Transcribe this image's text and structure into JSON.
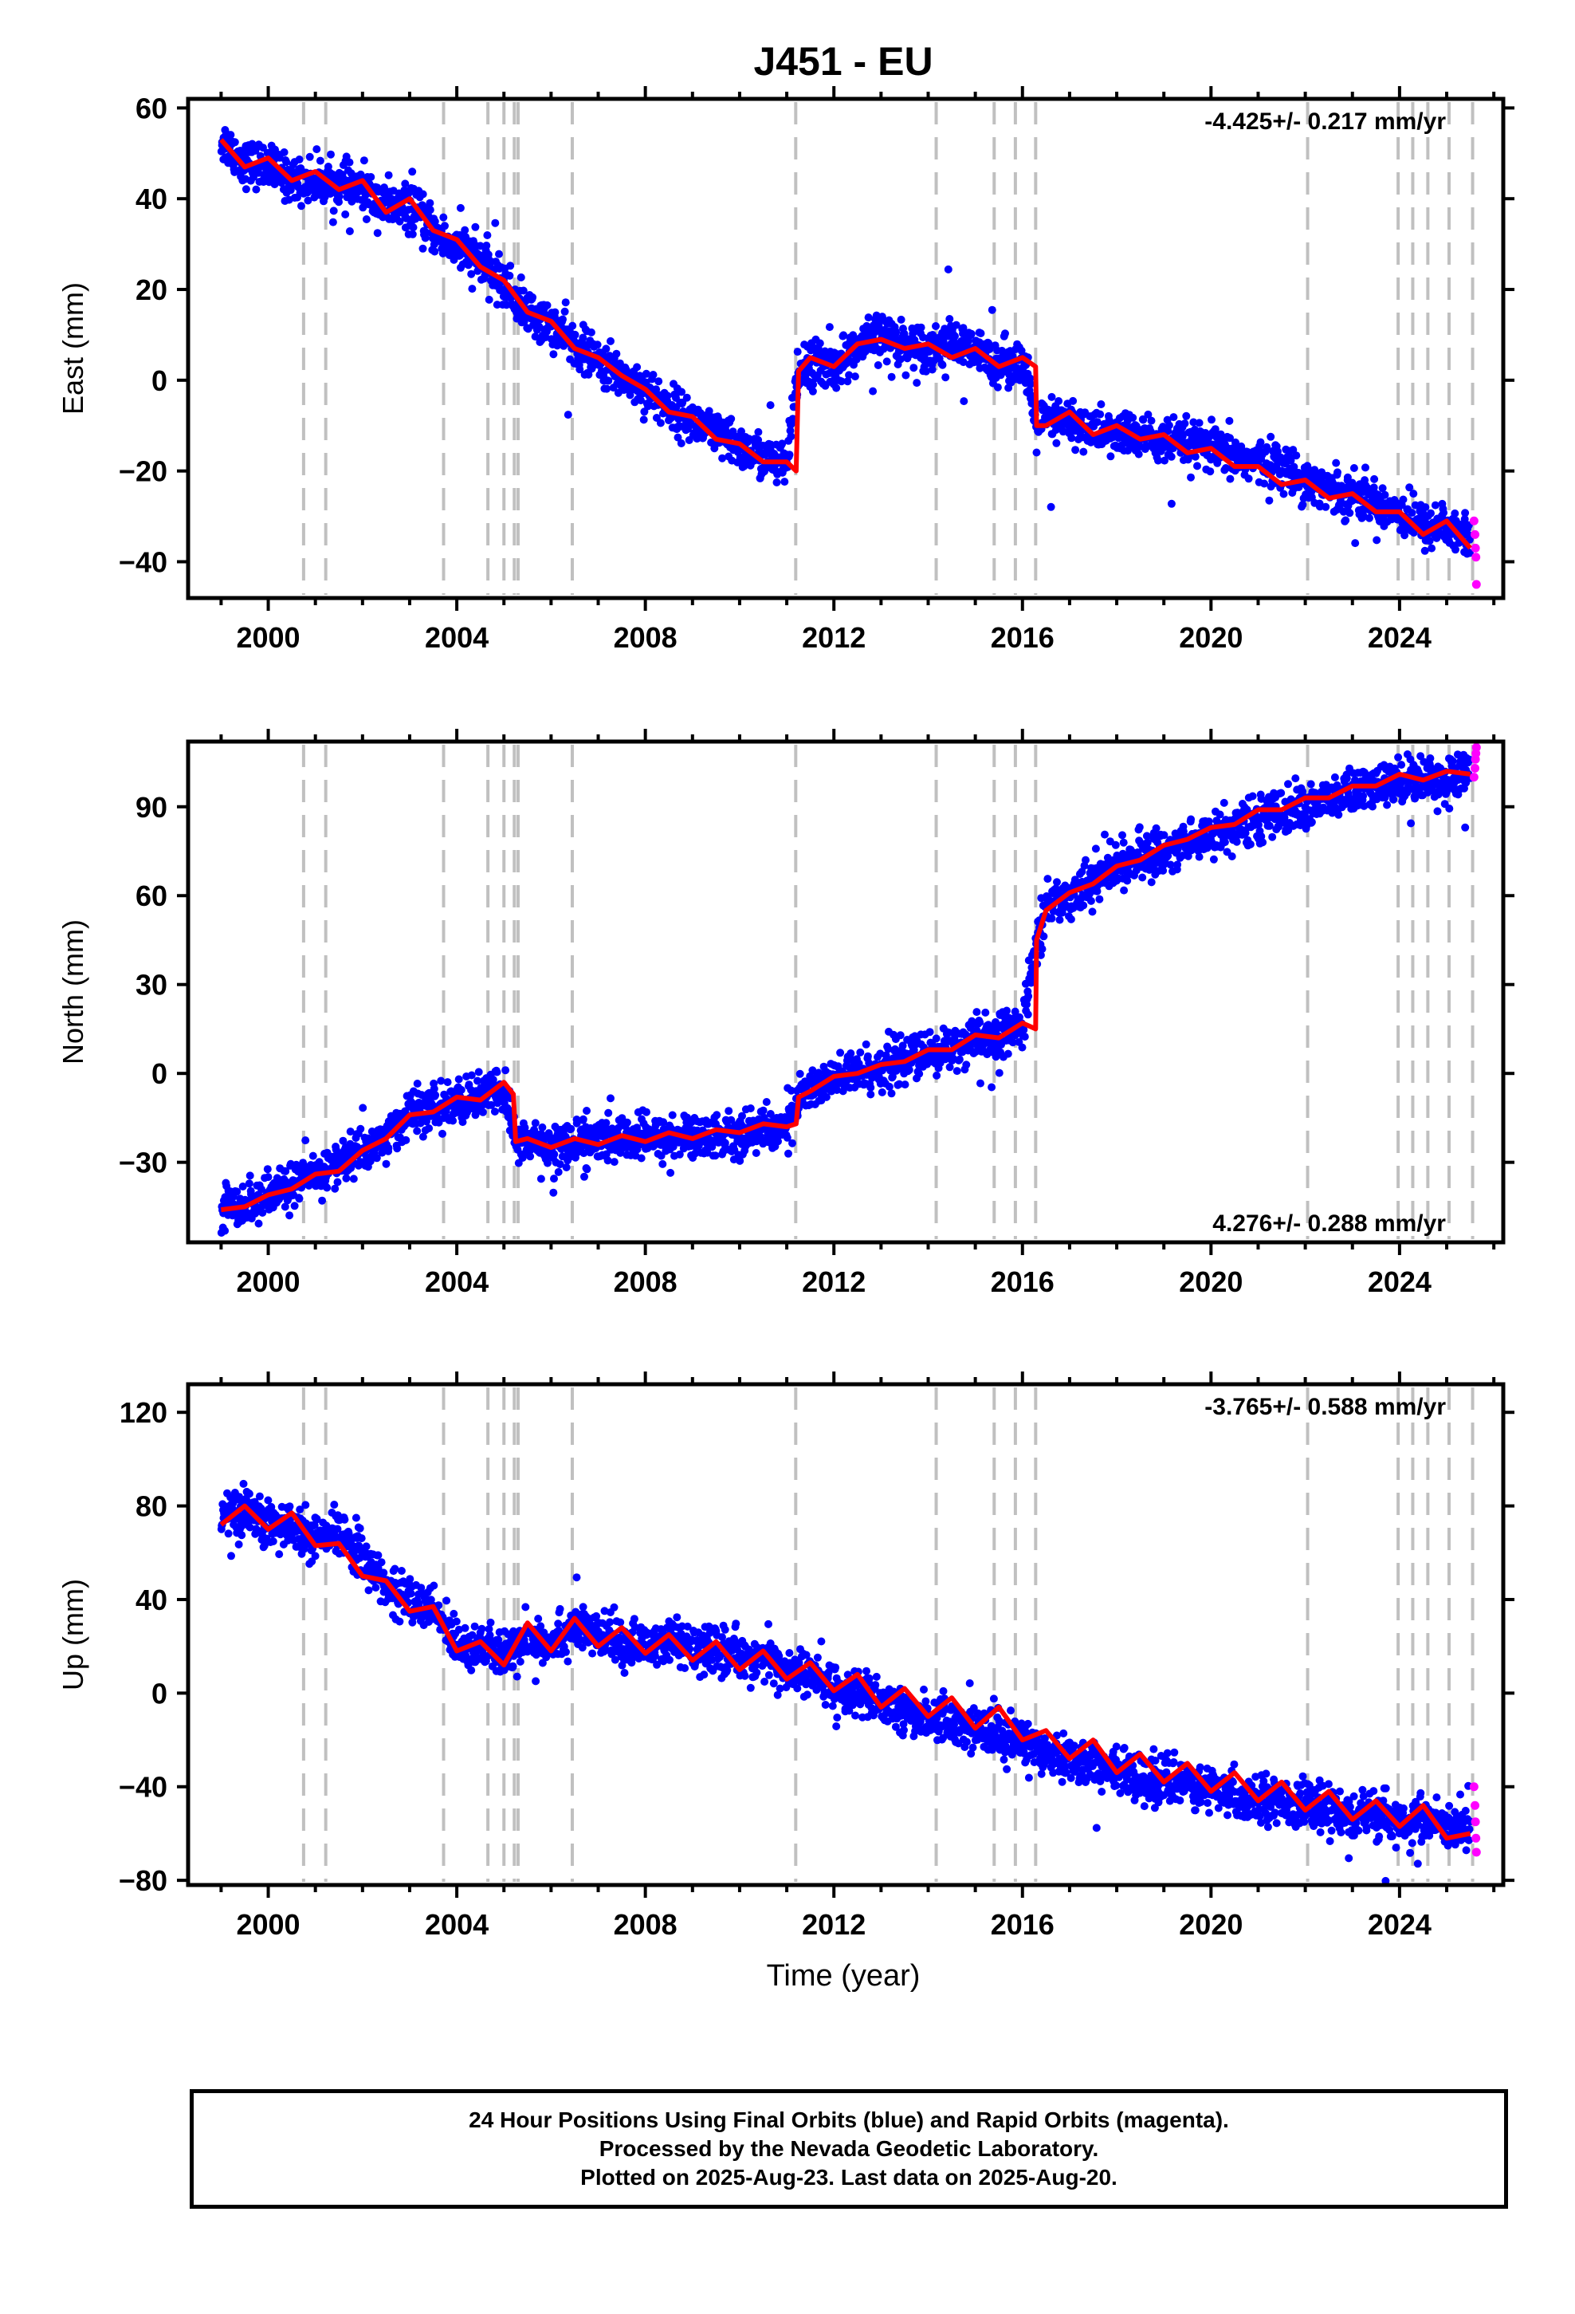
{
  "title": "J451 - EU",
  "xlabel": "Time (year)",
  "caption": [
    "24 Hour Positions Using Final Orbits (blue) and Rapid Orbits (magenta).",
    "Processed by the Nevada Geodetic Laboratory.",
    "Plotted on 2025-Aug-23. Last data on 2025-Aug-20."
  ],
  "colors": {
    "final": "#0000ff",
    "rapid": "#ff00ff",
    "model": "#ff0000",
    "steps": "#c0c0c0"
  },
  "chart_data": [
    {
      "type": "scatter",
      "ylabel": "East (mm)",
      "rate_label": "-4.425+/- 0.217 mm/yr",
      "rate_position": "top-right",
      "xlim": [
        1998.3,
        2026.2
      ],
      "ylim": [
        -48,
        62
      ],
      "yticks": [
        -40,
        -20,
        0,
        20,
        40,
        60
      ],
      "xticks": [
        2000,
        2004,
        2008,
        2012,
        2016,
        2020,
        2024
      ],
      "step_epochs": [
        2000.75,
        2001.22,
        2003.72,
        2004.66,
        2005.0,
        2005.22,
        2005.3,
        2006.45,
        2011.19,
        2014.17,
        2015.4,
        2015.85,
        2016.28,
        2022.05,
        2023.97,
        2024.28,
        2024.6,
        2025.05,
        2025.55
      ],
      "series": [
        {
          "name": "Final Orbits",
          "color": "#0000ff",
          "x": [
            1999.0,
            1999.5,
            2000.0,
            2000.5,
            2001.0,
            2001.5,
            2002.0,
            2002.5,
            2003.0,
            2003.5,
            2004.0,
            2004.5,
            2005.0,
            2005.5,
            2006.0,
            2006.5,
            2007.0,
            2007.5,
            2008.0,
            2008.5,
            2009.0,
            2009.5,
            2010.0,
            2010.5,
            2011.0,
            2011.25,
            2011.5,
            2012.0,
            2012.5,
            2013.0,
            2013.5,
            2014.0,
            2014.5,
            2015.0,
            2015.5,
            2016.0,
            2016.3,
            2016.5,
            2017.0,
            2017.5,
            2018.0,
            2018.5,
            2019.0,
            2019.5,
            2020.0,
            2020.5,
            2021.0,
            2021.5,
            2022.0,
            2022.5,
            2023.0,
            2023.5,
            2024.0,
            2024.5,
            2025.0,
            2025.5
          ],
          "y": [
            53,
            48,
            47,
            44,
            44,
            43,
            42,
            38,
            38,
            33,
            29,
            26,
            21,
            15,
            12,
            8,
            4,
            1,
            -2,
            -6,
            -9,
            -12,
            -15,
            -17,
            -19,
            2,
            4,
            3,
            7,
            10,
            8,
            7,
            8,
            6,
            4,
            4,
            -10,
            -9,
            -9,
            -11,
            -12,
            -12,
            -14,
            -14,
            -15,
            -17,
            -18,
            -19,
            -22,
            -24,
            -25,
            -27,
            -29,
            -32,
            -32,
            -35
          ]
        },
        {
          "name": "Rapid Orbits",
          "color": "#ff00ff",
          "x": [
            2025.58,
            2025.6,
            2025.61,
            2025.62,
            2025.63
          ],
          "y": [
            -31,
            -34,
            -37,
            -39,
            -45
          ]
        }
      ],
      "model": {
        "x": [
          1999.0,
          1999.5,
          2000.0,
          2000.5,
          2001.0,
          2001.5,
          2002.0,
          2002.5,
          2003.0,
          2003.5,
          2004.0,
          2004.5,
          2005.0,
          2005.5,
          2006.0,
          2006.5,
          2007.0,
          2007.5,
          2008.0,
          2008.5,
          2009.0,
          2009.5,
          2010.0,
          2010.5,
          2011.0,
          2011.2,
          2011.25,
          2011.5,
          2012.0,
          2012.5,
          2013.0,
          2013.5,
          2014.0,
          2014.5,
          2015.0,
          2015.5,
          2016.0,
          2016.28,
          2016.3,
          2016.5,
          2017.0,
          2017.5,
          2018.0,
          2018.5,
          2019.0,
          2019.5,
          2020.0,
          2020.5,
          2021.0,
          2021.5,
          2022.0,
          2022.5,
          2023.0,
          2023.5,
          2024.0,
          2024.5,
          2025.0,
          2025.5
        ],
        "y": [
          53,
          47,
          49,
          44,
          46,
          42,
          44,
          37,
          40,
          33,
          31,
          25,
          22,
          15,
          13,
          7,
          5,
          1,
          -2,
          -7,
          -8,
          -13,
          -14,
          -18,
          -18,
          -20,
          2,
          5,
          3,
          8,
          9,
          7,
          8,
          5,
          7,
          3,
          5,
          3,
          -10,
          -10,
          -7,
          -12,
          -10,
          -13,
          -12,
          -16,
          -15,
          -19,
          -19,
          -23,
          -22,
          -26,
          -25,
          -29,
          -29,
          -34,
          -31,
          -37
        ]
      }
    },
    {
      "type": "scatter",
      "ylabel": "North (mm)",
      "rate_label": "4.276+/- 0.288 mm/yr",
      "rate_position": "bottom-right",
      "xlim": [
        1998.3,
        2026.2
      ],
      "ylim": [
        -57,
        112
      ],
      "yticks": [
        -30,
        0,
        30,
        60,
        90
      ],
      "xticks": [
        2000,
        2004,
        2008,
        2012,
        2016,
        2020,
        2024
      ],
      "step_epochs": [
        2000.75,
        2001.22,
        2003.72,
        2004.66,
        2005.0,
        2005.22,
        2005.3,
        2006.45,
        2011.19,
        2014.17,
        2015.4,
        2015.85,
        2016.28,
        2022.05,
        2023.97,
        2024.28,
        2024.6,
        2025.05,
        2025.55
      ],
      "series": [
        {
          "name": "Final Orbits",
          "color": "#0000ff",
          "x": [
            1999.0,
            1999.5,
            2000.0,
            2000.5,
            2001.0,
            2001.5,
            2002.0,
            2002.5,
            2003.0,
            2003.5,
            2004.0,
            2004.5,
            2005.0,
            2005.25,
            2005.5,
            2006.0,
            2006.5,
            2007.0,
            2007.5,
            2008.0,
            2008.5,
            2009.0,
            2009.5,
            2010.0,
            2010.5,
            2011.0,
            2011.25,
            2011.5,
            2012.0,
            2012.5,
            2013.0,
            2013.5,
            2014.0,
            2014.5,
            2015.0,
            2015.5,
            2016.0,
            2016.3,
            2016.5,
            2017.0,
            2017.5,
            2018.0,
            2018.5,
            2019.0,
            2019.5,
            2020.0,
            2020.5,
            2021.0,
            2021.5,
            2022.0,
            2022.5,
            2023.0,
            2023.5,
            2024.0,
            2024.5,
            2025.0,
            2025.5
          ],
          "y": [
            -45,
            -44,
            -42,
            -37,
            -35,
            -30,
            -26,
            -22,
            -13,
            -12,
            -10,
            -8,
            -5,
            -23,
            -23,
            -24,
            -24,
            -23,
            -22,
            -22,
            -22,
            -21,
            -21,
            -20,
            -19,
            -18,
            -8,
            -5,
            -2,
            0,
            2,
            5,
            6,
            9,
            11,
            13,
            15,
            45,
            56,
            60,
            65,
            70,
            73,
            75,
            78,
            81,
            83,
            86,
            88,
            90,
            92,
            95,
            96,
            99,
            100,
            99,
            101
          ]
        },
        {
          "name": "Rapid Orbits",
          "color": "#ff00ff",
          "x": [
            2025.58,
            2025.6,
            2025.61,
            2025.62,
            2025.63
          ],
          "y": [
            100,
            103,
            106,
            108,
            110
          ]
        }
      ],
      "model": {
        "x": [
          1999.0,
          1999.5,
          2000.0,
          2000.5,
          2001.0,
          2001.5,
          2002.0,
          2002.5,
          2003.0,
          2003.5,
          2004.0,
          2004.5,
          2005.0,
          2005.2,
          2005.25,
          2005.5,
          2006.0,
          2006.5,
          2007.0,
          2007.5,
          2008.0,
          2008.5,
          2009.0,
          2009.5,
          2010.0,
          2010.5,
          2011.0,
          2011.2,
          2011.25,
          2011.5,
          2012.0,
          2012.5,
          2013.0,
          2013.5,
          2014.0,
          2014.5,
          2015.0,
          2015.5,
          2016.0,
          2016.28,
          2016.3,
          2016.5,
          2017.0,
          2017.5,
          2018.0,
          2018.5,
          2019.0,
          2019.5,
          2020.0,
          2020.5,
          2021.0,
          2021.5,
          2022.0,
          2022.5,
          2023.0,
          2023.5,
          2024.0,
          2024.5,
          2025.0,
          2025.5
        ],
        "y": [
          -46,
          -45,
          -41,
          -39,
          -34,
          -33,
          -26,
          -22,
          -14,
          -13,
          -8,
          -9,
          -3,
          -7,
          -23,
          -22,
          -25,
          -22,
          -24,
          -21,
          -23,
          -20,
          -22,
          -19,
          -20,
          -17,
          -18,
          -17,
          -8,
          -6,
          -1,
          0,
          3,
          4,
          8,
          8,
          13,
          12,
          17,
          15,
          45,
          55,
          61,
          64,
          70,
          72,
          77,
          79,
          83,
          84,
          89,
          89,
          93,
          93,
          97,
          97,
          101,
          99,
          102,
          101
        ]
      }
    },
    {
      "type": "scatter",
      "ylabel": "Up (mm)",
      "rate_label": "-3.765+/- 0.588 mm/yr",
      "rate_position": "top-right",
      "xlim": [
        1998.3,
        2026.2
      ],
      "ylim": [
        -82,
        132
      ],
      "yticks": [
        -80,
        -40,
        0,
        40,
        80,
        120
      ],
      "xticks": [
        2000,
        2004,
        2008,
        2012,
        2016,
        2020,
        2024
      ],
      "step_epochs": [
        2000.75,
        2001.22,
        2003.72,
        2004.66,
        2005.0,
        2005.22,
        2005.3,
        2006.45,
        2011.19,
        2014.17,
        2015.4,
        2015.85,
        2016.28,
        2022.05,
        2023.97,
        2024.28,
        2024.6,
        2025.05,
        2025.55
      ],
      "series": [
        {
          "name": "Final Orbits",
          "color": "#0000ff",
          "x": [
            1999.0,
            1999.5,
            2000.0,
            2000.5,
            2001.0,
            2001.5,
            2002.0,
            2002.5,
            2003.0,
            2003.5,
            2004.0,
            2004.5,
            2005.0,
            2005.5,
            2006.0,
            2006.5,
            2007.0,
            2007.5,
            2008.0,
            2008.5,
            2009.0,
            2009.5,
            2010.0,
            2010.5,
            2011.0,
            2011.5,
            2012.0,
            2012.5,
            2013.0,
            2013.5,
            2014.0,
            2014.5,
            2015.0,
            2015.5,
            2016.0,
            2016.5,
            2017.0,
            2017.5,
            2018.0,
            2018.5,
            2019.0,
            2019.5,
            2020.0,
            2020.5,
            2021.0,
            2021.5,
            2022.0,
            2022.5,
            2023.0,
            2023.5,
            2024.0,
            2024.5,
            2025.0,
            2025.5
          ],
          "y": [
            75,
            78,
            72,
            70,
            65,
            68,
            60,
            45,
            40,
            35,
            22,
            20,
            15,
            25,
            22,
            28,
            24,
            22,
            20,
            22,
            18,
            19,
            16,
            15,
            10,
            8,
            2,
            0,
            -5,
            -8,
            -10,
            -12,
            -15,
            -18,
            -20,
            -24,
            -28,
            -30,
            -34,
            -35,
            -38,
            -38,
            -42,
            -44,
            -45,
            -46,
            -48,
            -50,
            -52,
            -53,
            -55,
            -54,
            -58,
            -60
          ]
        },
        {
          "name": "Rapid Orbits",
          "color": "#ff00ff",
          "x": [
            2025.58,
            2025.6,
            2025.61,
            2025.62,
            2025.63
          ],
          "y": [
            -40,
            -48,
            -55,
            -62,
            -68
          ]
        }
      ],
      "model": {
        "x": [
          1999.0,
          1999.5,
          2000.0,
          2000.5,
          2001.0,
          2001.5,
          2002.0,
          2002.5,
          2003.0,
          2003.5,
          2004.0,
          2004.5,
          2005.0,
          2005.5,
          2006.0,
          2006.5,
          2007.0,
          2007.5,
          2008.0,
          2008.5,
          2009.0,
          2009.5,
          2010.0,
          2010.5,
          2011.0,
          2011.5,
          2012.0,
          2012.5,
          2013.0,
          2013.5,
          2014.0,
          2014.5,
          2015.0,
          2015.5,
          2016.0,
          2016.5,
          2017.0,
          2017.5,
          2018.0,
          2018.5,
          2019.0,
          2019.5,
          2020.0,
          2020.5,
          2021.0,
          2021.5,
          2022.0,
          2022.5,
          2023.0,
          2023.5,
          2024.0,
          2024.5,
          2025.0,
          2025.5
        ],
        "y": [
          72,
          80,
          70,
          77,
          63,
          64,
          50,
          48,
          35,
          37,
          18,
          22,
          12,
          30,
          18,
          32,
          20,
          28,
          17,
          25,
          14,
          22,
          10,
          18,
          6,
          13,
          1,
          8,
          -6,
          2,
          -10,
          -2,
          -15,
          -6,
          -20,
          -16,
          -28,
          -20,
          -34,
          -26,
          -38,
          -30,
          -42,
          -34,
          -46,
          -38,
          -50,
          -42,
          -54,
          -46,
          -57,
          -48,
          -62,
          -60
        ]
      }
    }
  ]
}
